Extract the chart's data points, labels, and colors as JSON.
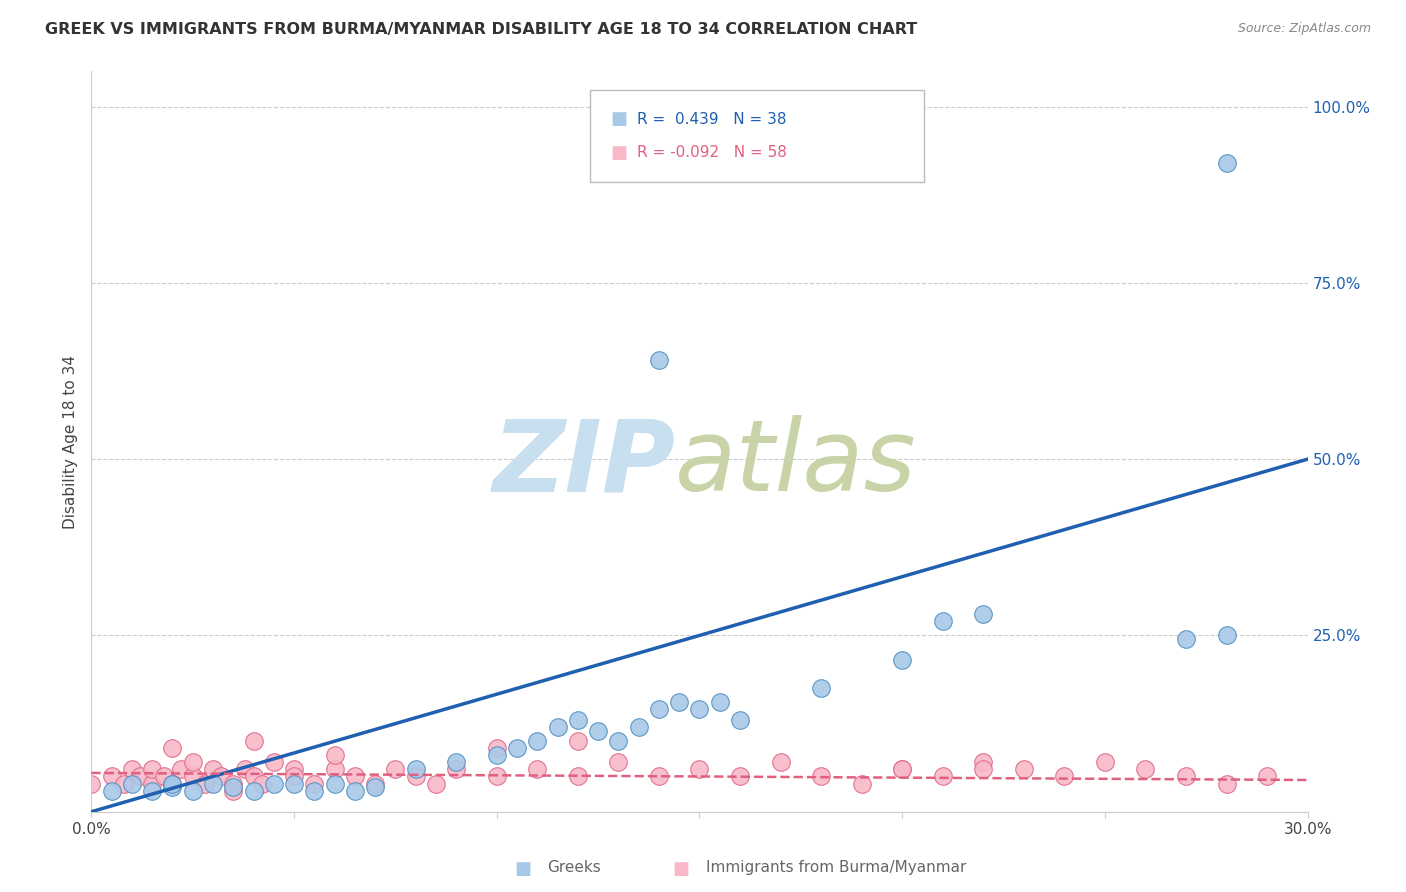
{
  "title": "GREEK VS IMMIGRANTS FROM BURMA/MYANMAR DISABILITY AGE 18 TO 34 CORRELATION CHART",
  "source": "Source: ZipAtlas.com",
  "ylabel": "Disability Age 18 to 34",
  "xlim": [
    0.0,
    0.3
  ],
  "ylim": [
    0.0,
    1.05
  ],
  "y_ticks_right": [
    0.0,
    0.25,
    0.5,
    0.75,
    1.0
  ],
  "y_tick_labels_right": [
    "",
    "25.0%",
    "50.0%",
    "75.0%",
    "100.0%"
  ],
  "greek_color": "#a8c8e8",
  "greek_edge_color": "#5090c0",
  "burma_color": "#f8b8c8",
  "burma_edge_color": "#e06888",
  "line_greek_color": "#2060b0",
  "line_burma_color": "#e06080",
  "greek_scatter_x": [
    0.005,
    0.01,
    0.015,
    0.02,
    0.02,
    0.025,
    0.03,
    0.035,
    0.04,
    0.045,
    0.05,
    0.055,
    0.06,
    0.065,
    0.07,
    0.08,
    0.09,
    0.1,
    0.105,
    0.11,
    0.115,
    0.12,
    0.125,
    0.13,
    0.135,
    0.14,
    0.145,
    0.15,
    0.155,
    0.16,
    0.18,
    0.2,
    0.21,
    0.22,
    0.27,
    0.28,
    0.14,
    0.28
  ],
  "greek_scatter_y": [
    0.03,
    0.04,
    0.03,
    0.035,
    0.04,
    0.03,
    0.04,
    0.035,
    0.03,
    0.04,
    0.04,
    0.03,
    0.04,
    0.03,
    0.035,
    0.06,
    0.07,
    0.08,
    0.09,
    0.1,
    0.12,
    0.13,
    0.115,
    0.1,
    0.12,
    0.145,
    0.155,
    0.145,
    0.155,
    0.13,
    0.175,
    0.215,
    0.27,
    0.28,
    0.245,
    0.25,
    0.64,
    0.92
  ],
  "burma_scatter_x": [
    0.0,
    0.005,
    0.008,
    0.01,
    0.012,
    0.015,
    0.015,
    0.018,
    0.02,
    0.022,
    0.025,
    0.025,
    0.028,
    0.03,
    0.032,
    0.035,
    0.038,
    0.04,
    0.042,
    0.045,
    0.05,
    0.05,
    0.055,
    0.06,
    0.065,
    0.07,
    0.075,
    0.08,
    0.085,
    0.09,
    0.1,
    0.11,
    0.12,
    0.13,
    0.14,
    0.15,
    0.16,
    0.17,
    0.18,
    0.19,
    0.2,
    0.21,
    0.22,
    0.23,
    0.24,
    0.25,
    0.26,
    0.27,
    0.28,
    0.29,
    0.02,
    0.04,
    0.035,
    0.06,
    0.1,
    0.12,
    0.2,
    0.22
  ],
  "burma_scatter_y": [
    0.04,
    0.05,
    0.04,
    0.06,
    0.05,
    0.04,
    0.06,
    0.05,
    0.04,
    0.06,
    0.05,
    0.07,
    0.04,
    0.06,
    0.05,
    0.04,
    0.06,
    0.05,
    0.04,
    0.07,
    0.06,
    0.05,
    0.04,
    0.06,
    0.05,
    0.04,
    0.06,
    0.05,
    0.04,
    0.06,
    0.05,
    0.06,
    0.05,
    0.07,
    0.05,
    0.06,
    0.05,
    0.07,
    0.05,
    0.04,
    0.06,
    0.05,
    0.07,
    0.06,
    0.05,
    0.07,
    0.06,
    0.05,
    0.04,
    0.05,
    0.09,
    0.1,
    0.03,
    0.08,
    0.09,
    0.1,
    0.06,
    0.06
  ],
  "greek_line_x": [
    0.0,
    0.3
  ],
  "greek_line_y": [
    0.0,
    0.5
  ],
  "burma_line_x": [
    0.0,
    0.3
  ],
  "burma_line_y": [
    0.055,
    0.045
  ],
  "background_color": "#ffffff",
  "grid_color": "#cccccc",
  "right_tick_color": "#2060b0"
}
